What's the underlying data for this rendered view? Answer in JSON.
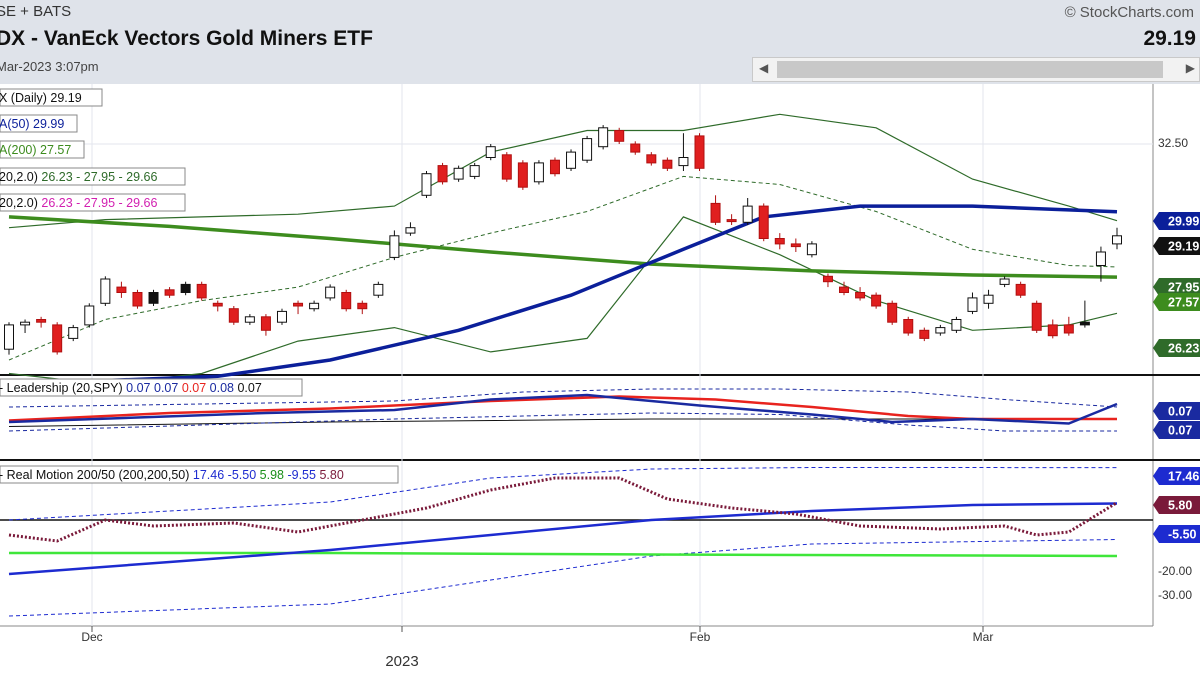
{
  "header": {
    "exchange": "SE + BATS",
    "title": "DX - VanEck Vectors Gold Miners ETF",
    "date": "Mar-2023 3:07pm",
    "copyright": "© StockCharts.com",
    "last_price": "29.19"
  },
  "scrollbar": {
    "left_arrow": "◀",
    "right_arrow": "▶"
  },
  "annotations": {
    "daily": "X (Daily) 29.19",
    "ma50": "A(50) 29.99",
    "ma200": "A(200) 27.57",
    "bb1_prefix": "20,2.0)",
    "bb1_values": "26.23 - 27.95 - 29.66",
    "bb2_prefix": "20,2.0)",
    "bb2_values": "26.23 - 27.95 - 29.66",
    "lead_prefix": "- Leadership (20,SPY)",
    "lead_v1": "0.07",
    "lead_v2": "0.07",
    "lead_v3": "0.07",
    "lead_v4": "0.08",
    "lead_v5": "0.07",
    "rm_prefix": "- Real Motion 200/50 (200,200,50)",
    "rm_v1": "17.46",
    "rm_v2": "-5.50",
    "rm_v3": "5.98",
    "rm_v4": "-9.55",
    "rm_v5": "5.80"
  },
  "colors": {
    "up_candle": "#ffffff",
    "down_candle": "#e01f1f",
    "black_candle": "#111111",
    "ma50": "#0b1f9a",
    "ma200": "#3d8c1e",
    "bollinger": "#2f6b2a",
    "leadership_blue": "#1a2aa0",
    "leadership_red": "#e8231e",
    "rm_blue": "#1d2bd0",
    "rm_green": "#3fe63a",
    "rm_dotted": "#7a1a3a"
  },
  "chart_data": {
    "type": "candlestick",
    "price_axis": {
      "tick": "32.50",
      "badges": [
        {
          "text": "29.99",
          "color": "#0b1f9a"
        },
        {
          "text": "29.19",
          "color": "#111111"
        },
        {
          "text": "27.95",
          "color": "#2f6b2a"
        },
        {
          "text": "27.57",
          "color": "#3d8c1e"
        },
        {
          "text": "26.23",
          "color": "#2f6b2a"
        }
      ],
      "ylim": [
        24.0,
        34.0
      ]
    },
    "leadership_axis": {
      "badges": [
        {
          "text": "0.07",
          "color": "#1a2aa0"
        },
        {
          "text": "0.07",
          "color": "#1a2aa0"
        }
      ]
    },
    "realmotion_axis": {
      "badges": [
        {
          "text": "17.46",
          "color": "#1d2bd0"
        },
        {
          "text": "5.80",
          "color": "#7a1a3a"
        },
        {
          "text": "-5.50",
          "color": "#1d2bd0"
        }
      ],
      "ticks": [
        "-20.00",
        "-30.00"
      ],
      "ylim": [
        -35,
        22
      ]
    },
    "x_labels": [
      "Dec",
      "2023",
      "Feb",
      "Mar"
    ],
    "candles": [
      [
        24.9,
        25.8,
        24.7,
        25.9,
        "up"
      ],
      [
        25.8,
        25.9,
        25.5,
        26.0,
        "up"
      ],
      [
        26.0,
        25.9,
        25.7,
        26.1,
        "down"
      ],
      [
        25.8,
        24.8,
        24.7,
        25.9,
        "down"
      ],
      [
        25.3,
        25.7,
        25.2,
        25.8,
        "up"
      ],
      [
        25.8,
        26.5,
        25.7,
        26.6,
        "up"
      ],
      [
        26.6,
        27.5,
        26.5,
        27.6,
        "up"
      ],
      [
        27.2,
        27.0,
        26.8,
        27.4,
        "down"
      ],
      [
        27.0,
        26.5,
        26.4,
        27.1,
        "down"
      ],
      [
        26.6,
        27.0,
        26.5,
        27.1,
        "black"
      ],
      [
        26.9,
        27.1,
        26.8,
        27.2,
        "down"
      ],
      [
        27.0,
        27.3,
        26.9,
        27.4,
        "black"
      ],
      [
        27.3,
        26.8,
        26.7,
        27.4,
        "down"
      ],
      [
        26.5,
        26.6,
        26.3,
        26.7,
        "down"
      ],
      [
        26.4,
        25.9,
        25.8,
        26.5,
        "down"
      ],
      [
        25.9,
        26.1,
        25.8,
        26.2,
        "up"
      ],
      [
        26.1,
        25.6,
        25.4,
        26.2,
        "down"
      ],
      [
        25.9,
        26.3,
        25.8,
        26.4,
        "up"
      ],
      [
        26.6,
        26.5,
        26.2,
        26.7,
        "down"
      ],
      [
        26.4,
        26.6,
        26.3,
        26.7,
        "up"
      ],
      [
        26.8,
        27.2,
        26.7,
        27.3,
        "up"
      ],
      [
        27.0,
        26.4,
        26.3,
        27.1,
        "down"
      ],
      [
        26.6,
        26.4,
        26.2,
        26.7,
        "down"
      ],
      [
        26.9,
        27.3,
        26.8,
        27.4,
        "up"
      ],
      [
        28.3,
        29.1,
        28.2,
        29.3,
        "up"
      ],
      [
        29.2,
        29.4,
        29.1,
        29.6,
        "up"
      ],
      [
        30.6,
        31.4,
        30.5,
        31.5,
        "up"
      ],
      [
        31.7,
        31.1,
        31.0,
        31.8,
        "down"
      ],
      [
        31.2,
        31.6,
        31.1,
        31.7,
        "up"
      ],
      [
        31.3,
        31.7,
        31.2,
        31.8,
        "up"
      ],
      [
        32.0,
        32.4,
        31.9,
        32.5,
        "up"
      ],
      [
        32.1,
        31.2,
        31.1,
        32.2,
        "down"
      ],
      [
        31.8,
        30.9,
        30.8,
        31.9,
        "down"
      ],
      [
        31.1,
        31.8,
        31.0,
        31.9,
        "up"
      ],
      [
        31.9,
        31.4,
        31.3,
        32.0,
        "down"
      ],
      [
        31.6,
        32.2,
        31.5,
        32.3,
        "up"
      ],
      [
        31.9,
        32.7,
        31.8,
        32.8,
        "up"
      ],
      [
        32.4,
        33.1,
        32.3,
        33.2,
        "up"
      ],
      [
        33.0,
        32.6,
        32.5,
        33.1,
        "down"
      ],
      [
        32.5,
        32.2,
        32.1,
        32.6,
        "down"
      ],
      [
        32.1,
        31.8,
        31.7,
        32.2,
        "down"
      ],
      [
        31.9,
        31.6,
        31.5,
        32.0,
        "down"
      ],
      [
        31.7,
        32.0,
        31.5,
        32.9,
        "up"
      ],
      [
        32.8,
        31.6,
        31.5,
        32.9,
        "down"
      ],
      [
        30.3,
        29.6,
        29.5,
        30.6,
        "down"
      ],
      [
        29.7,
        29.7,
        29.5,
        29.9,
        "down"
      ],
      [
        29.6,
        30.2,
        29.5,
        30.5,
        "up"
      ],
      [
        30.2,
        29.0,
        28.9,
        30.3,
        "down"
      ],
      [
        29.0,
        28.8,
        28.6,
        29.2,
        "down"
      ],
      [
        28.8,
        28.7,
        28.5,
        29.0,
        "down"
      ],
      [
        28.4,
        28.8,
        28.3,
        28.9,
        "up"
      ],
      [
        27.6,
        27.4,
        27.2,
        27.7,
        "down"
      ],
      [
        27.2,
        27.0,
        26.9,
        27.4,
        "down"
      ],
      [
        27.0,
        26.8,
        26.7,
        27.2,
        "down"
      ],
      [
        26.9,
        26.5,
        26.4,
        27.0,
        "down"
      ],
      [
        26.6,
        25.9,
        25.8,
        26.7,
        "down"
      ],
      [
        26.0,
        25.5,
        25.4,
        26.1,
        "down"
      ],
      [
        25.6,
        25.3,
        25.2,
        25.7,
        "down"
      ],
      [
        25.5,
        25.7,
        25.4,
        25.8,
        "up"
      ],
      [
        25.6,
        26.0,
        25.5,
        26.1,
        "up"
      ],
      [
        26.3,
        26.8,
        26.2,
        27.0,
        "up"
      ],
      [
        26.6,
        26.9,
        26.4,
        27.1,
        "up"
      ],
      [
        27.3,
        27.5,
        27.2,
        27.6,
        "up"
      ],
      [
        27.3,
        26.9,
        26.8,
        27.4,
        "down"
      ],
      [
        26.6,
        25.6,
        25.5,
        26.7,
        "down"
      ],
      [
        25.8,
        25.4,
        25.3,
        26.0,
        "down"
      ],
      [
        25.8,
        25.5,
        25.4,
        26.1,
        "down"
      ],
      [
        25.9,
        25.8,
        25.7,
        26.7,
        "black"
      ],
      [
        28.0,
        28.5,
        27.4,
        28.7,
        "up"
      ],
      [
        28.8,
        29.1,
        28.6,
        29.4,
        "up"
      ]
    ],
    "ma50": [
      [
        0,
        23.6
      ],
      [
        13,
        23.9
      ],
      [
        20,
        24.5
      ],
      [
        28,
        25.6
      ],
      [
        35,
        26.9
      ],
      [
        42,
        28.6
      ],
      [
        47,
        29.8
      ],
      [
        53,
        30.2
      ],
      [
        60,
        30.2
      ],
      [
        69,
        29.99
      ]
    ],
    "ma200": [
      [
        0,
        29.8
      ],
      [
        10,
        29.45
      ],
      [
        20,
        29.0
      ],
      [
        30,
        28.5
      ],
      [
        40,
        28.05
      ],
      [
        50,
        27.8
      ],
      [
        60,
        27.65
      ],
      [
        69,
        27.57
      ]
    ],
    "bb_mid": [
      [
        0,
        24.5
      ],
      [
        6,
        26.0
      ],
      [
        12,
        26.7
      ],
      [
        18,
        27.2
      ],
      [
        24,
        28.3
      ],
      [
        30,
        29.2
      ],
      [
        36,
        30.0
      ],
      [
        42,
        31.3
      ],
      [
        48,
        31.0
      ],
      [
        54,
        30.0
      ],
      [
        60,
        28.6
      ],
      [
        66,
        28.0
      ],
      [
        69,
        27.95
      ]
    ],
    "bb_upper": [
      [
        0,
        29.4
      ],
      [
        6,
        29.7
      ],
      [
        12,
        29.8
      ],
      [
        18,
        29.9
      ],
      [
        24,
        30.2
      ],
      [
        30,
        32.2
      ],
      [
        36,
        33.0
      ],
      [
        42,
        33.0
      ],
      [
        48,
        33.6
      ],
      [
        54,
        33.1
      ],
      [
        60,
        31.2
      ],
      [
        66,
        30.2
      ],
      [
        69,
        29.66
      ]
    ],
    "bb_lower": [
      [
        0,
        24.0
      ],
      [
        6,
        23.6
      ],
      [
        12,
        24.0
      ],
      [
        18,
        25.2
      ],
      [
        24,
        25.7
      ],
      [
        30,
        24.8
      ],
      [
        36,
        25.3
      ],
      [
        42,
        29.8
      ],
      [
        48,
        28.4
      ],
      [
        54,
        26.7
      ],
      [
        60,
        25.6
      ],
      [
        66,
        25.8
      ],
      [
        69,
        26.23
      ]
    ],
    "leadership": {
      "blue": [
        [
          0,
          0.058
        ],
        [
          8,
          0.061
        ],
        [
          16,
          0.064
        ],
        [
          24,
          0.066
        ],
        [
          30,
          0.073
        ],
        [
          36,
          0.076
        ],
        [
          43,
          0.069
        ],
        [
          50,
          0.063
        ],
        [
          55,
          0.058
        ],
        [
          60,
          0.06
        ],
        [
          66,
          0.057
        ],
        [
          69,
          0.07
        ]
      ],
      "red": [
        [
          0,
          0.059
        ],
        [
          10,
          0.064
        ],
        [
          20,
          0.067
        ],
        [
          30,
          0.072
        ],
        [
          38,
          0.075
        ],
        [
          44,
          0.073
        ],
        [
          50,
          0.068
        ],
        [
          56,
          0.062
        ],
        [
          60,
          0.06
        ],
        [
          69,
          0.06
        ]
      ],
      "upper": [
        [
          0,
          0.068
        ],
        [
          12,
          0.07
        ],
        [
          24,
          0.072
        ],
        [
          32,
          0.078
        ],
        [
          40,
          0.08
        ],
        [
          48,
          0.08
        ],
        [
          56,
          0.078
        ],
        [
          62,
          0.073
        ],
        [
          69,
          0.068
        ]
      ],
      "lower": [
        [
          0,
          0.052
        ],
        [
          12,
          0.056
        ],
        [
          24,
          0.06
        ],
        [
          32,
          0.062
        ],
        [
          40,
          0.064
        ],
        [
          48,
          0.063
        ],
        [
          56,
          0.056
        ],
        [
          62,
          0.052
        ],
        [
          69,
          0.052
        ]
      ],
      "black": [
        [
          0,
          0.055
        ],
        [
          20,
          0.058
        ],
        [
          40,
          0.06
        ],
        [
          69,
          0.06
        ]
      ]
    },
    "realmotion": {
      "blue": [
        [
          0,
          -18
        ],
        [
          10,
          -14
        ],
        [
          20,
          -10
        ],
        [
          30,
          -5
        ],
        [
          40,
          0
        ],
        [
          50,
          3
        ],
        [
          60,
          5
        ],
        [
          69,
          5.5
        ]
      ],
      "green": [
        [
          0,
          -11
        ],
        [
          20,
          -11
        ],
        [
          40,
          -11.5
        ],
        [
          69,
          -12
        ]
      ],
      "dotted": [
        [
          0,
          -5
        ],
        [
          3,
          -7
        ],
        [
          6,
          0
        ],
        [
          9,
          -2
        ],
        [
          14,
          -1
        ],
        [
          18,
          -4
        ],
        [
          22,
          0
        ],
        [
          26,
          4
        ],
        [
          30,
          10
        ],
        [
          34,
          14
        ],
        [
          38,
          14
        ],
        [
          41,
          7
        ],
        [
          45,
          4
        ],
        [
          49,
          2
        ],
        [
          53,
          -2
        ],
        [
          58,
          -3
        ],
        [
          62,
          -2
        ],
        [
          64,
          -5
        ],
        [
          66,
          -4
        ],
        [
          69,
          5.8
        ]
      ],
      "dash_upper": [
        [
          0,
          0
        ],
        [
          20,
          6
        ],
        [
          30,
          14
        ],
        [
          40,
          17
        ],
        [
          50,
          17.5
        ],
        [
          69,
          17.46
        ]
      ],
      "dash_lower": [
        [
          0,
          -32
        ],
        [
          20,
          -28
        ],
        [
          30,
          -20
        ],
        [
          40,
          -12
        ],
        [
          50,
          -8
        ],
        [
          69,
          -6.5
        ]
      ]
    }
  }
}
